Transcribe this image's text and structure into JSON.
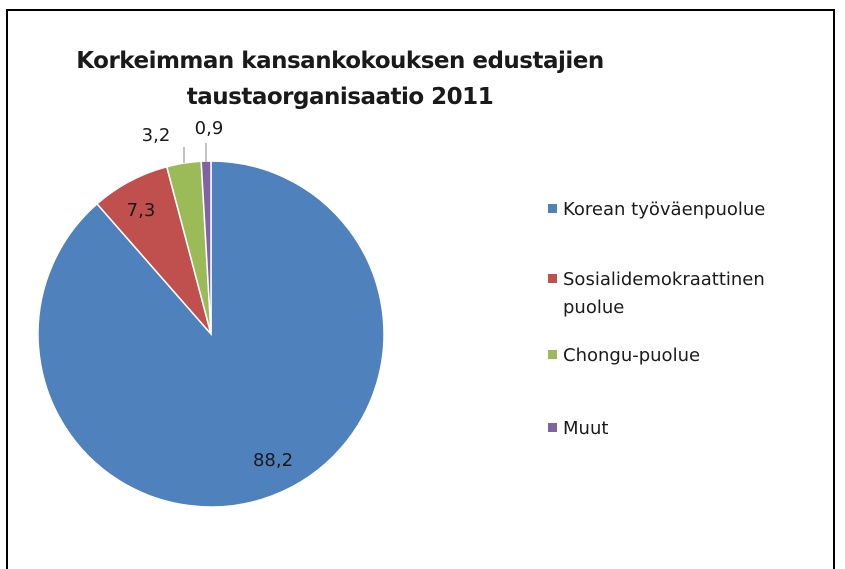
{
  "chart_data": {
    "type": "pie",
    "title_lines": [
      "Korkeimman kansankokouksen edustajien",
      "taustaorganisaatio 2011"
    ],
    "categories": [
      "Korean työväenpuolue",
      "Sosialidemokraattinen puolue",
      "Chongu-puolue",
      "Muut"
    ],
    "values": [
      88.2,
      7.3,
      3.2,
      0.9
    ],
    "data_labels": [
      "88,2",
      "7,3",
      "3,2",
      "0,9"
    ],
    "colors": [
      "#4f81bd",
      "#c0504d",
      "#9bbb59",
      "#8064a2"
    ],
    "legend_position": "right"
  }
}
